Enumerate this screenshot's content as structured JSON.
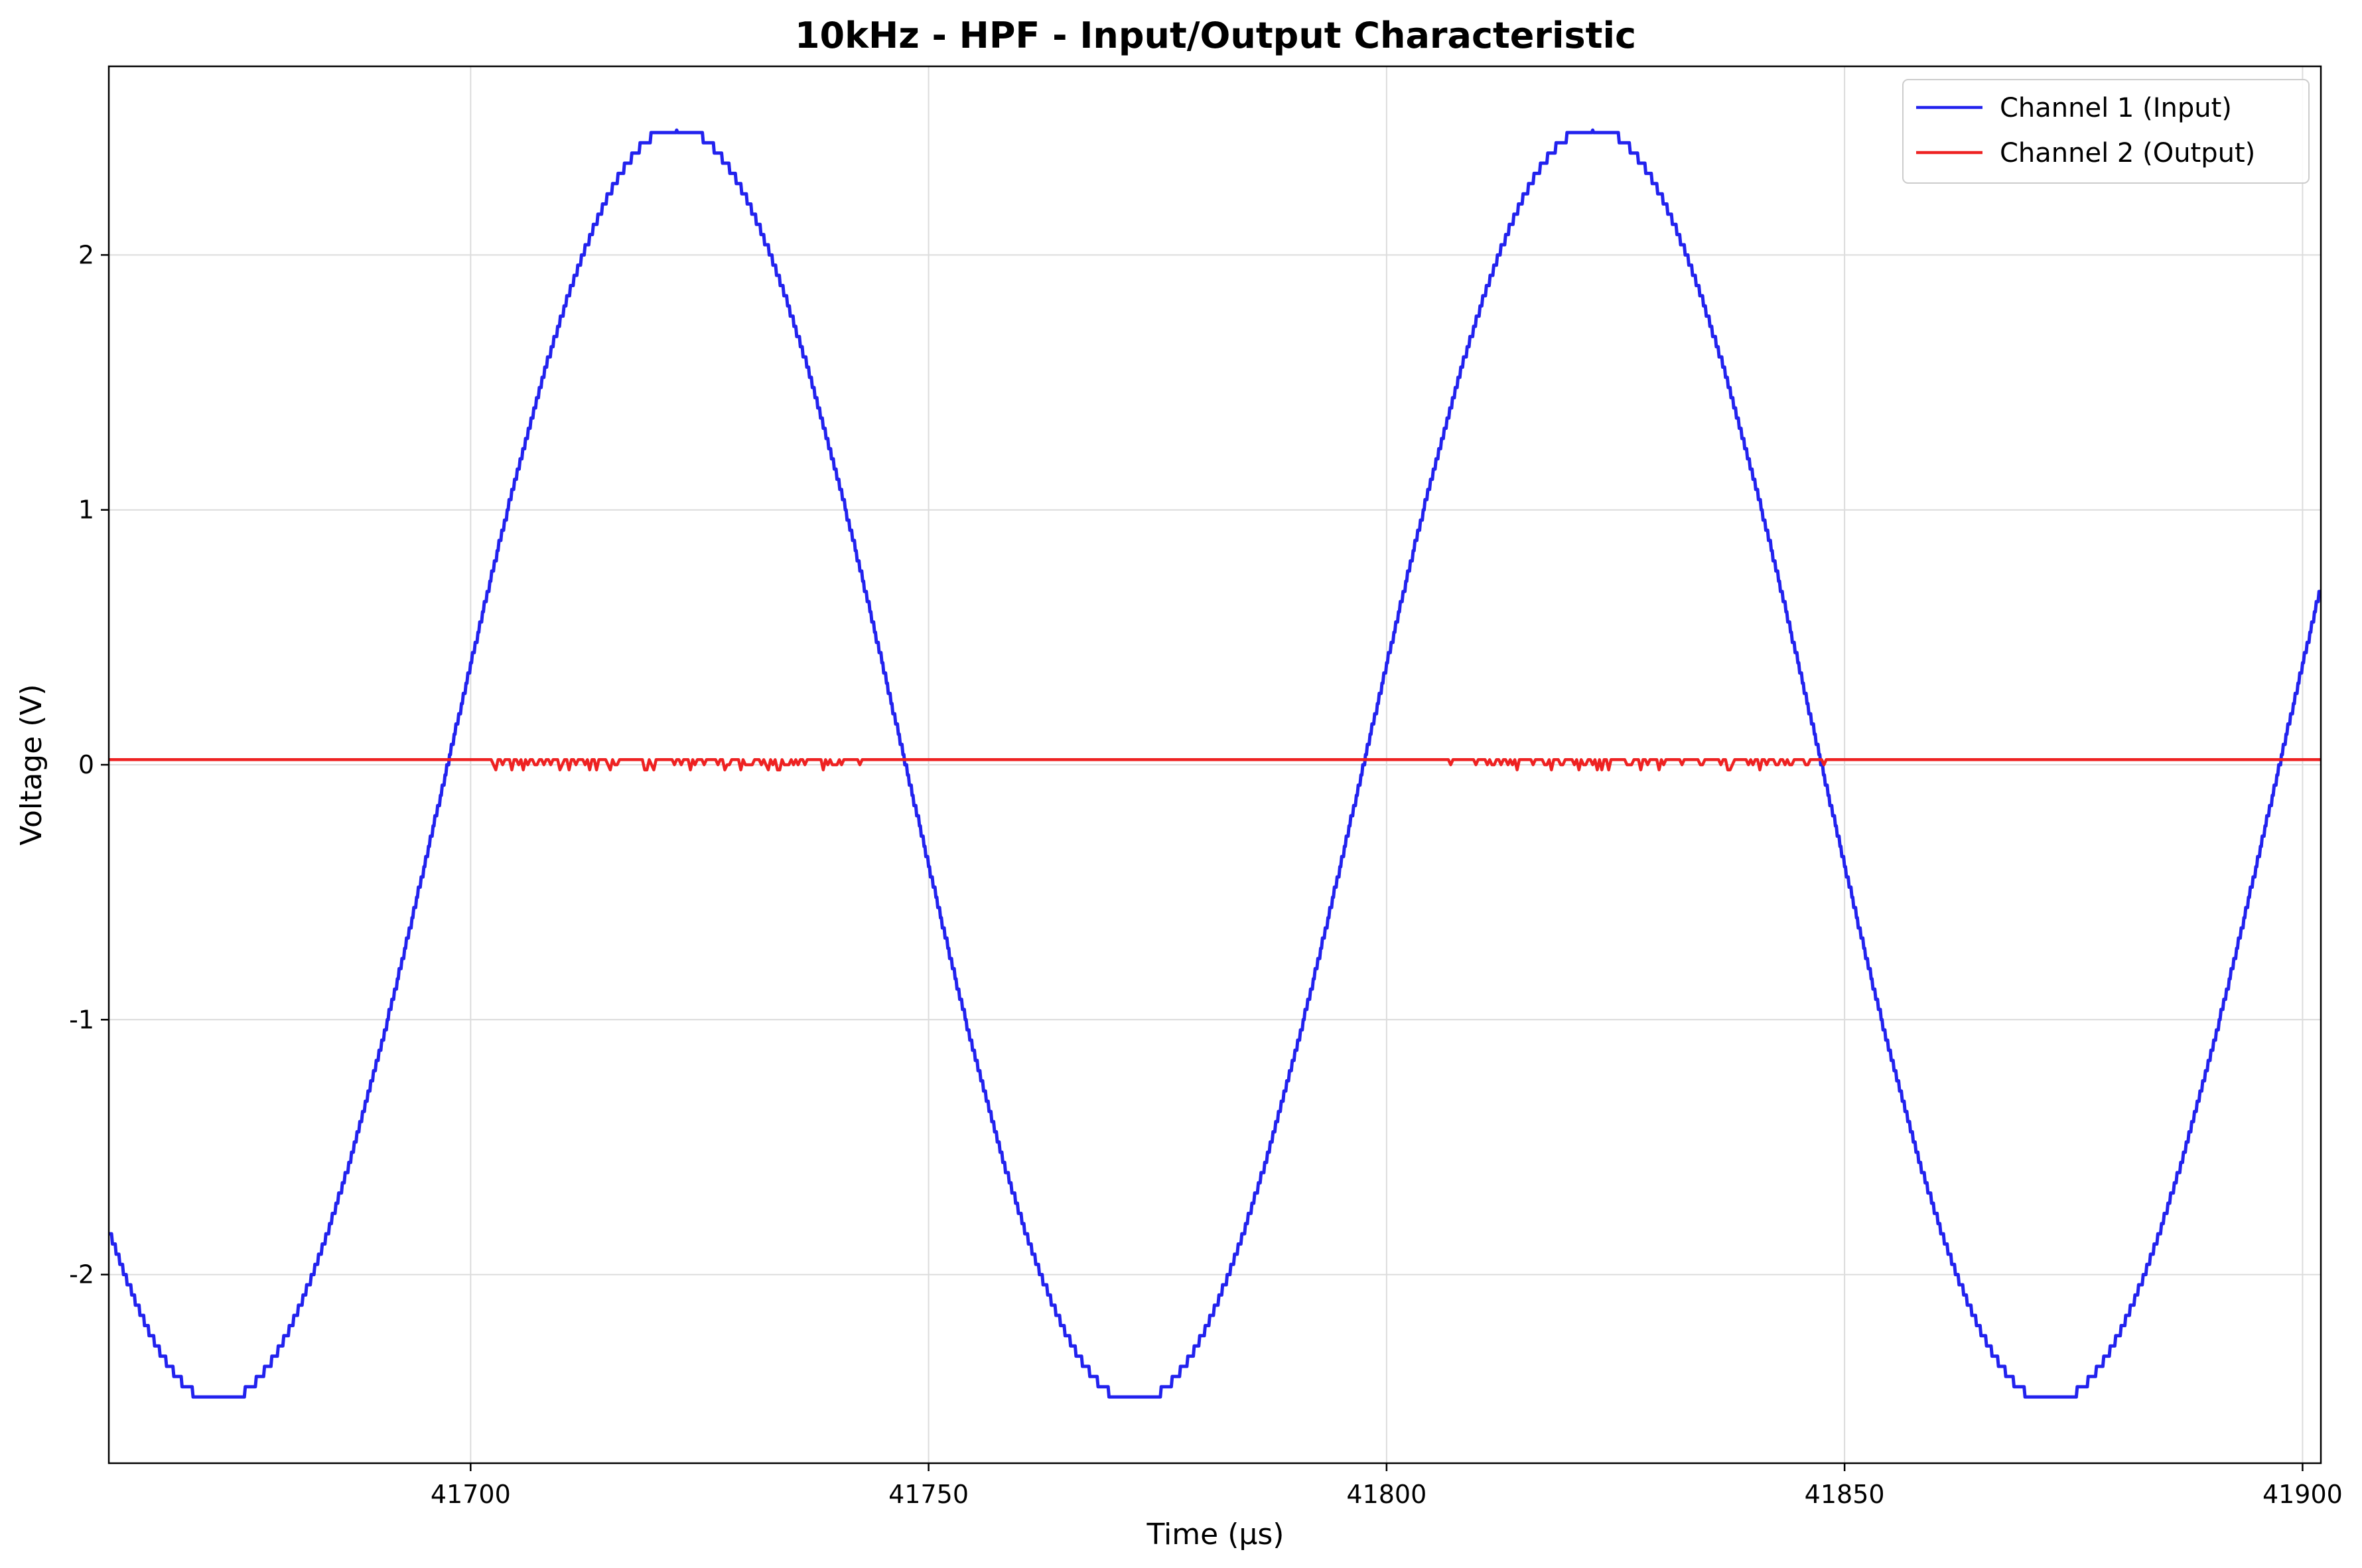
{
  "chart_data": {
    "type": "line",
    "title": "10kHz - HPF - Input/Output Characteristic",
    "xlabel": "Time (µs)",
    "ylabel": "Voltage (V)",
    "xlim": [
      41660.5,
      41902
    ],
    "ylim": [
      -2.74,
      2.74
    ],
    "x_ticks": [
      41700,
      41750,
      41800,
      41850,
      41900
    ],
    "x_tick_labels": [
      "41700",
      "41750",
      "41800",
      "41850",
      "41900"
    ],
    "y_ticks": [
      -2,
      -1,
      0,
      1,
      2
    ],
    "y_tick_labels": [
      "-2",
      "-1",
      "0",
      "1",
      "2"
    ],
    "grid": true,
    "legend_position": "top-right",
    "series": [
      {
        "name": "Channel 1 (Input)",
        "color": "#2222ee",
        "kind": "quantized-sine",
        "amplitude": 2.5,
        "frequency_kHz": 10,
        "zero_crossing_rising_us": 41697.5,
        "quantization_step_V": 0.04,
        "x_range": [
          41660.5,
          41902
        ]
      },
      {
        "name": "Channel 2 (Output)",
        "color": "#ee2222",
        "kind": "near-zero-noise",
        "baseline_V": 0.02,
        "noise_dip_V": -0.02,
        "noise_windows_us": [
          [
            41702,
            41745
          ],
          [
            41805,
            41848
          ]
        ],
        "x_range": [
          41660.5,
          41902
        ]
      }
    ]
  }
}
